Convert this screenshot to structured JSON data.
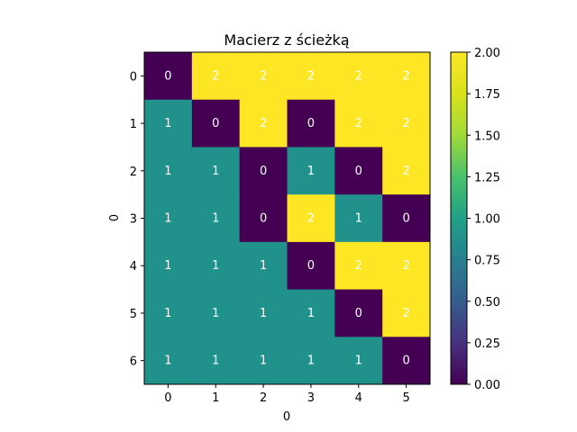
{
  "chart_data": {
    "type": "heatmap",
    "title": "Macierz z ścieżką",
    "xlabel": "0",
    "ylabel": "0",
    "x_ticks": [
      "0",
      "1",
      "2",
      "3",
      "4",
      "5"
    ],
    "y_ticks": [
      "0",
      "1",
      "2",
      "3",
      "4",
      "5",
      "6"
    ],
    "matrix": [
      [
        0,
        2,
        2,
        2,
        2,
        2
      ],
      [
        1,
        0,
        2,
        0,
        2,
        2
      ],
      [
        1,
        1,
        0,
        1,
        0,
        2
      ],
      [
        1,
        1,
        0,
        2,
        1,
        0
      ],
      [
        1,
        1,
        1,
        0,
        2,
        2
      ],
      [
        1,
        1,
        1,
        1,
        0,
        2
      ],
      [
        1,
        1,
        1,
        1,
        1,
        0
      ]
    ],
    "value_range": [
      0,
      2
    ],
    "colormap": "viridis",
    "colors": {
      "0": "#440154",
      "1": "#21918c",
      "2": "#fde725"
    },
    "colorbar_ticks": [
      "0.00",
      "0.25",
      "0.50",
      "0.75",
      "1.00",
      "1.25",
      "1.50",
      "1.75",
      "2.00"
    ],
    "cell_text_color": "#ffffff",
    "grid": false
  }
}
